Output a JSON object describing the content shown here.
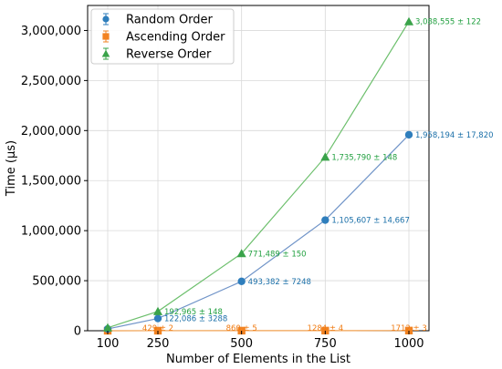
{
  "chart_data": {
    "type": "line",
    "title": "",
    "xlabel": "Number of Elements in the List",
    "ylabel": "Time (μs)",
    "x": [
      100,
      250,
      500,
      750,
      1000
    ],
    "x_ticks": [
      "100",
      "250",
      "500",
      "750",
      "1000"
    ],
    "xlim": [
      40,
      1060
    ],
    "ylim": [
      0,
      3250000
    ],
    "y_ticks": [
      0,
      500000,
      1000000,
      1500000,
      2000000,
      2500000,
      3000000
    ],
    "y_tick_labels": [
      "0",
      "500,000",
      "1,000,000",
      "1,500,000",
      "2,000,000",
      "2,500,000",
      "3,000,000"
    ],
    "grid": true,
    "legend_position": "top-left",
    "series": [
      {
        "name": "Random Order",
        "marker": "circle",
        "color": "#2f7ebc",
        "line_color": "#7094c8",
        "label_color": "#1a6fa8",
        "values": [
          18000,
          122086,
          493382,
          1105607,
          1958194
        ],
        "errors": [
          0,
          3288,
          7248,
          14667,
          17820
        ],
        "point_labels": [
          "",
          "122,086 ± 3288",
          "493,382 ± 7248",
          "1,105,607 ± 14,667",
          "1,958,194 ± 17,820"
        ]
      },
      {
        "name": "Ascending Order",
        "marker": "square",
        "color": "#f28322",
        "line_color": "#f0a050",
        "label_color": "#f07a10",
        "values": [
          80,
          429,
          860,
          1284,
          1712
        ],
        "errors": [
          0,
          2,
          5,
          4,
          3
        ],
        "point_labels": [
          "",
          "429 ± 2",
          "860 ± 5",
          "1284 ± 4",
          "1712 ± 3"
        ]
      },
      {
        "name": "Reverse Order",
        "marker": "triangle",
        "color": "#3aa34a",
        "line_color": "#6cbf6c",
        "label_color": "#22a040",
        "values": [
          30000,
          192965,
          771489,
          1735790,
          3088555
        ],
        "errors": [
          0,
          148,
          150,
          148,
          122
        ],
        "point_labels": [
          "",
          "192,965 ± 148",
          "771,489 ± 150",
          "1,735,790 ± 148",
          "3,088,555 ± 122"
        ]
      }
    ]
  }
}
